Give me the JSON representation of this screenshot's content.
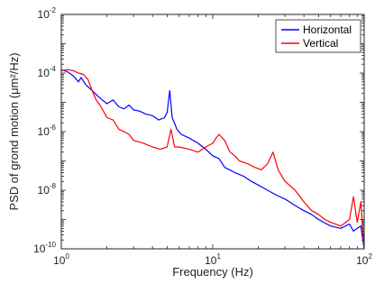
{
  "chart_data": {
    "type": "line",
    "title": "",
    "xlabel": "Frequency (Hz)",
    "ylabel": "PSD of grond motion (μm²/Hz)",
    "x_scale": "log",
    "y_scale": "log",
    "xlim": [
      1,
      100
    ],
    "ylim": [
      1e-10,
      0.01
    ],
    "grid": false,
    "legend_position": "top-right",
    "x_ticks": [
      {
        "base": "10",
        "exp": "0"
      },
      {
        "base": "10",
        "exp": "1"
      },
      {
        "base": "10",
        "exp": "2"
      }
    ],
    "y_ticks": [
      {
        "base": "10",
        "exp": "-2"
      },
      {
        "base": "10",
        "exp": "-4"
      },
      {
        "base": "10",
        "exp": "-6"
      },
      {
        "base": "10",
        "exp": "-8"
      },
      {
        "base": "10",
        "exp": "-10"
      }
    ],
    "series": [
      {
        "name": "Horizontal",
        "color": "#0000ff",
        "points": [
          [
            1.0,
            0.00013
          ],
          [
            1.1,
            0.00011
          ],
          [
            1.2,
            8e-05
          ],
          [
            1.3,
            5e-05
          ],
          [
            1.35,
            7e-05
          ],
          [
            1.45,
            4e-05
          ],
          [
            1.6,
            2.5e-05
          ],
          [
            1.8,
            1.4e-05
          ],
          [
            2.0,
            9e-06
          ],
          [
            2.2,
            1.2e-05
          ],
          [
            2.4,
            7e-06
          ],
          [
            2.6,
            6e-06
          ],
          [
            2.8,
            8e-06
          ],
          [
            3.0,
            5.5e-06
          ],
          [
            3.3,
            5e-06
          ],
          [
            3.6,
            4e-06
          ],
          [
            4.0,
            3.5e-06
          ],
          [
            4.4,
            2.5e-06
          ],
          [
            4.8,
            3e-06
          ],
          [
            5.0,
            4.5e-06
          ],
          [
            5.2,
            2.5e-05
          ],
          [
            5.4,
            3e-06
          ],
          [
            5.8,
            1.2e-06
          ],
          [
            6.2,
            8e-07
          ],
          [
            7.0,
            6e-07
          ],
          [
            8.0,
            4e-07
          ],
          [
            9.0,
            2.5e-07
          ],
          [
            10.0,
            1.5e-07
          ],
          [
            11.0,
            1.2e-07
          ],
          [
            12.0,
            6e-08
          ],
          [
            14.0,
            4e-08
          ],
          [
            16.0,
            3e-08
          ],
          [
            18.0,
            2e-08
          ],
          [
            20.0,
            1.5e-08
          ],
          [
            23.0,
            1e-08
          ],
          [
            26.0,
            7e-09
          ],
          [
            30.0,
            5e-09
          ],
          [
            35.0,
            3e-09
          ],
          [
            40.0,
            2e-09
          ],
          [
            45.0,
            1.5e-09
          ],
          [
            50.0,
            1e-09
          ],
          [
            60.0,
            6e-10
          ],
          [
            70.0,
            5e-10
          ],
          [
            80.0,
            7e-10
          ],
          [
            85.0,
            4e-10
          ],
          [
            90.0,
            5e-10
          ],
          [
            95.0,
            6e-10
          ],
          [
            100.0,
            1e-10
          ]
        ]
      },
      {
        "name": "Vertical",
        "color": "#ff0000",
        "points": [
          [
            1.0,
            0.00012
          ],
          [
            1.1,
            0.00013
          ],
          [
            1.2,
            0.00012
          ],
          [
            1.3,
            0.0001
          ],
          [
            1.4,
            9e-05
          ],
          [
            1.5,
            6e-05
          ],
          [
            1.6,
            2.5e-05
          ],
          [
            1.7,
            1.2e-05
          ],
          [
            1.8,
            8e-06
          ],
          [
            1.9,
            5e-06
          ],
          [
            2.0,
            3e-06
          ],
          [
            2.2,
            2.5e-06
          ],
          [
            2.4,
            1.2e-06
          ],
          [
            2.6,
            1e-06
          ],
          [
            2.8,
            8e-07
          ],
          [
            3.0,
            5e-07
          ],
          [
            3.5,
            4e-07
          ],
          [
            4.0,
            3e-07
          ],
          [
            4.5,
            2.5e-07
          ],
          [
            5.0,
            3e-07
          ],
          [
            5.3,
            1.2e-06
          ],
          [
            5.6,
            3e-07
          ],
          [
            6.0,
            3e-07
          ],
          [
            7.0,
            2.5e-07
          ],
          [
            8.0,
            2e-07
          ],
          [
            9.0,
            3e-07
          ],
          [
            10.0,
            4e-07
          ],
          [
            10.5,
            6e-07
          ],
          [
            11.0,
            8e-07
          ],
          [
            12.0,
            5e-07
          ],
          [
            13.0,
            2e-07
          ],
          [
            14.0,
            1.5e-07
          ],
          [
            15.0,
            1e-07
          ],
          [
            17.0,
            8e-08
          ],
          [
            19.0,
            6e-08
          ],
          [
            21.0,
            5e-08
          ],
          [
            23.0,
            8e-08
          ],
          [
            25.0,
            2e-07
          ],
          [
            27.0,
            5e-08
          ],
          [
            30.0,
            2e-08
          ],
          [
            35.0,
            1e-08
          ],
          [
            40.0,
            4e-09
          ],
          [
            45.0,
            2e-09
          ],
          [
            50.0,
            1.5e-09
          ],
          [
            55.0,
            1e-09
          ],
          [
            60.0,
            8e-10
          ],
          [
            70.0,
            6e-10
          ],
          [
            80.0,
            1e-09
          ],
          [
            85.0,
            6e-09
          ],
          [
            90.0,
            8e-10
          ],
          [
            95.0,
            4e-09
          ],
          [
            100.0,
            1e-10
          ]
        ]
      }
    ]
  }
}
